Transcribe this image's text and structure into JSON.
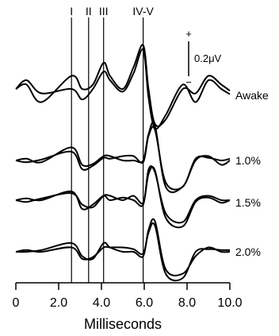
{
  "chart_data": {
    "type": "line",
    "xlabel": "Milliseconds",
    "xlim": [
      0,
      10
    ],
    "x_ticks": [
      {
        "value": 0,
        "label": "0"
      },
      {
        "value": 2,
        "label": "2.0"
      },
      {
        "value": 4,
        "label": "4.0"
      },
      {
        "value": 6,
        "label": "6.0"
      },
      {
        "value": 8,
        "label": "8.0"
      },
      {
        "value": 10,
        "label": "10.0"
      }
    ],
    "peak_markers": [
      {
        "label": "I",
        "x": 2.6
      },
      {
        "label": "II",
        "x": 3.4
      },
      {
        "label": "III",
        "x": 4.1
      },
      {
        "label": "IV-V",
        "x": 5.95
      }
    ],
    "scale_bar": {
      "value": "0.2μV",
      "plus": "+",
      "minus": "−"
    },
    "series": [
      {
        "name": "Awake",
        "x": [
          0,
          0.5,
          1.2,
          2.6,
          3.1,
          3.6,
          4.1,
          4.4,
          5.0,
          5.5,
          5.95,
          6.2,
          6.5,
          7.0,
          7.8,
          8.4,
          9.0,
          9.6,
          10.0
        ],
        "traces": [
          [
            0.0,
            0.05,
            -0.15,
            0.15,
            0.0,
            0.05,
            0.3,
            0.15,
            0.0,
            0.25,
            0.5,
            0.0,
            -0.4,
            -0.35,
            0.0,
            -0.05,
            0.15,
            0.05,
            -0.02
          ],
          [
            0.0,
            0.1,
            -0.05,
            0.0,
            -0.12,
            0.0,
            0.2,
            0.1,
            -0.03,
            0.18,
            0.45,
            -0.1,
            -0.45,
            -0.3,
            0.05,
            -0.15,
            0.1,
            0.0,
            -0.06
          ]
        ]
      },
      {
        "name": "1.0%",
        "x": [
          0,
          0.5,
          1.2,
          2.6,
          3.1,
          3.6,
          4.1,
          4.4,
          5.0,
          5.5,
          5.95,
          6.2,
          6.5,
          7.0,
          7.8,
          8.4,
          9.0,
          9.6,
          10.0
        ],
        "traces": [
          [
            0.0,
            0.02,
            -0.02,
            0.15,
            -0.05,
            -0.04,
            0.05,
            0.05,
            0.0,
            0.0,
            0.0,
            0.3,
            0.4,
            -0.3,
            -0.3,
            0.0,
            0.05,
            -0.05,
            0.0
          ],
          [
            0.0,
            -0.02,
            0.01,
            0.1,
            -0.1,
            -0.06,
            0.03,
            0.02,
            0.05,
            0.05,
            -0.02,
            0.28,
            0.35,
            -0.25,
            -0.3,
            0.02,
            0.03,
            0.0,
            0.02
          ]
        ]
      },
      {
        "name": "1.5%",
        "x": [
          0,
          0.5,
          1.2,
          2.6,
          3.1,
          3.6,
          4.1,
          4.4,
          5.0,
          5.5,
          5.95,
          6.2,
          6.5,
          7.0,
          7.8,
          8.4,
          9.0,
          9.6,
          10.0
        ],
        "traces": [
          [
            0.0,
            0.02,
            0.0,
            0.1,
            -0.1,
            -0.05,
            0.05,
            0.0,
            0.03,
            0.0,
            -0.05,
            0.35,
            0.32,
            -0.15,
            -0.25,
            0.0,
            0.05,
            0.0,
            0.0
          ],
          [
            0.0,
            -0.02,
            0.02,
            0.08,
            -0.05,
            -0.08,
            0.05,
            0.05,
            0.0,
            0.05,
            -0.03,
            0.3,
            0.34,
            -0.2,
            -0.3,
            -0.02,
            0.03,
            -0.03,
            0.0
          ]
        ]
      },
      {
        "name": "2.0%",
        "x": [
          0,
          0.5,
          1.2,
          2.6,
          3.1,
          3.6,
          4.1,
          4.4,
          5.0,
          5.5,
          5.95,
          6.2,
          6.5,
          7.0,
          7.8,
          8.4,
          9.0,
          9.6,
          10.0
        ],
        "traces": [
          [
            0.0,
            0.0,
            0.02,
            0.1,
            -0.05,
            -0.08,
            0.1,
            0.05,
            0.0,
            0.0,
            -0.05,
            0.25,
            0.35,
            -0.2,
            -0.25,
            -0.05,
            0.05,
            0.0,
            0.0
          ],
          [
            0.0,
            0.02,
            0.0,
            0.05,
            -0.08,
            -0.06,
            0.05,
            0.05,
            0.05,
            0.03,
            -0.02,
            0.22,
            0.3,
            -0.25,
            -0.3,
            0.0,
            0.03,
            0.02,
            0.02
          ]
        ]
      }
    ]
  }
}
